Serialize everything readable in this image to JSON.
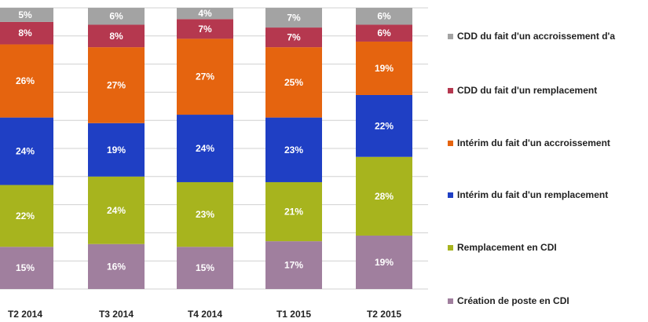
{
  "chart_data": {
    "type": "bar",
    "stacked": true,
    "percent_stacked": true,
    "categories": [
      "T2 2014",
      "T3 2014",
      "T4 2014",
      "T1 2015",
      "T2 2015"
    ],
    "series": [
      {
        "name": "Création de poste en CDI",
        "color": "#a07f9e",
        "values": [
          15,
          16,
          15,
          17,
          19
        ]
      },
      {
        "name": "Remplacement en CDI",
        "color": "#a7b41e",
        "values": [
          22,
          24,
          23,
          21,
          28
        ]
      },
      {
        "name": "Intérim du fait d'un remplacement",
        "color": "#1f3fc4",
        "values": [
          24,
          19,
          24,
          23,
          22
        ]
      },
      {
        "name": "Intérim du fait d'un accroissement",
        "color": "#e5640f",
        "values": [
          26,
          27,
          27,
          25,
          19
        ]
      },
      {
        "name": "CDD du fait d'un remplacement",
        "color": "#b5384f",
        "values": [
          8,
          8,
          7,
          7,
          6
        ]
      },
      {
        "name": "CDD du fait d'un accroissement d'a",
        "color": "#a3a3a3",
        "values": [
          5,
          6,
          4,
          7,
          6
        ]
      }
    ],
    "value_suffix": "%",
    "ylim": [
      0,
      100
    ],
    "grid": true,
    "legend_position": "right"
  }
}
